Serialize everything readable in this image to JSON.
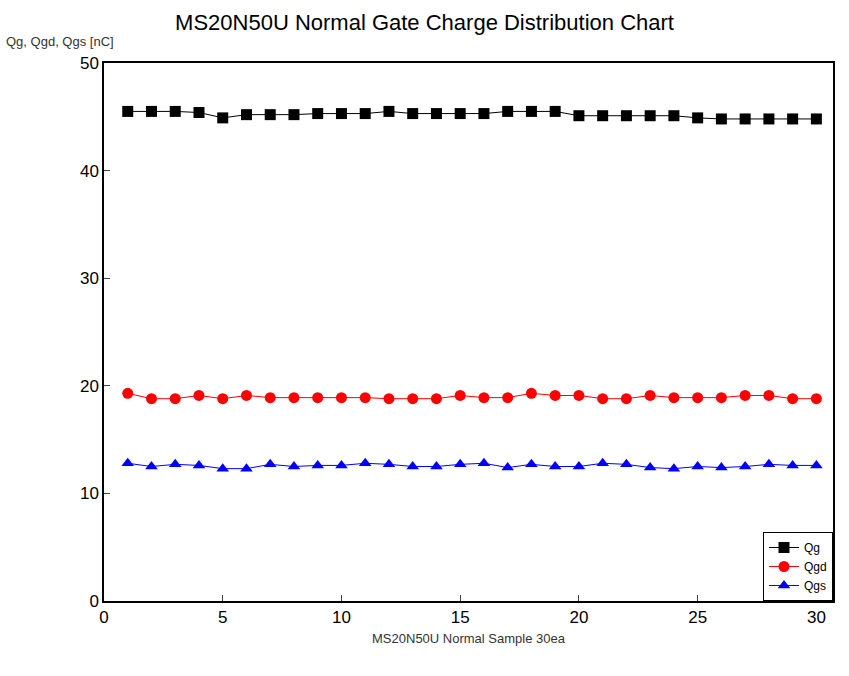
{
  "chart_data": {
    "type": "line",
    "title": "MS20N50U Normal Gate Charge Distribution Chart",
    "x_label": "MS20N50U Normal Sample 30ea",
    "y_label": "Qg, Qgd, Qgs [nC]",
    "x": [
      1,
      2,
      3,
      4,
      5,
      6,
      7,
      8,
      9,
      10,
      11,
      12,
      13,
      14,
      15,
      16,
      17,
      18,
      19,
      20,
      21,
      22,
      23,
      24,
      25,
      26,
      27,
      28,
      29,
      30
    ],
    "series": [
      {
        "name": "Qg",
        "color": "#000000",
        "marker": "square",
        "values": [
          45.5,
          45.5,
          45.5,
          45.4,
          44.9,
          45.2,
          45.2,
          45.2,
          45.3,
          45.3,
          45.3,
          45.5,
          45.3,
          45.3,
          45.3,
          45.3,
          45.5,
          45.5,
          45.5,
          45.1,
          45.1,
          45.1,
          45.1,
          45.1,
          44.9,
          44.8,
          44.8,
          44.8,
          44.8,
          44.8
        ]
      },
      {
        "name": "Qgd",
        "color": "#ff0000",
        "marker": "circle",
        "values": [
          19.3,
          18.8,
          18.8,
          19.1,
          18.8,
          19.1,
          18.9,
          18.9,
          18.9,
          18.9,
          18.9,
          18.8,
          18.8,
          18.8,
          19.1,
          18.9,
          18.9,
          19.3,
          19.1,
          19.1,
          18.8,
          18.8,
          19.1,
          18.9,
          18.9,
          18.9,
          19.1,
          19.1,
          18.8,
          18.8
        ]
      },
      {
        "name": "Qgs",
        "color": "#0000ff",
        "marker": "triangle-up",
        "values": [
          12.8,
          12.5,
          12.7,
          12.6,
          12.3,
          12.3,
          12.7,
          12.5,
          12.6,
          12.6,
          12.8,
          12.7,
          12.5,
          12.5,
          12.7,
          12.8,
          12.4,
          12.7,
          12.5,
          12.5,
          12.8,
          12.7,
          12.4,
          12.3,
          12.5,
          12.4,
          12.5,
          12.7,
          12.6,
          12.6
        ]
      }
    ],
    "xlim": [
      0,
      30.7
    ],
    "xticks": [
      0,
      5,
      10,
      15,
      20,
      25,
      30
    ],
    "ylim": [
      0,
      50
    ],
    "yticks": [
      0,
      10,
      20,
      30,
      40,
      50
    ],
    "grid": false,
    "legend": "bottom right"
  }
}
